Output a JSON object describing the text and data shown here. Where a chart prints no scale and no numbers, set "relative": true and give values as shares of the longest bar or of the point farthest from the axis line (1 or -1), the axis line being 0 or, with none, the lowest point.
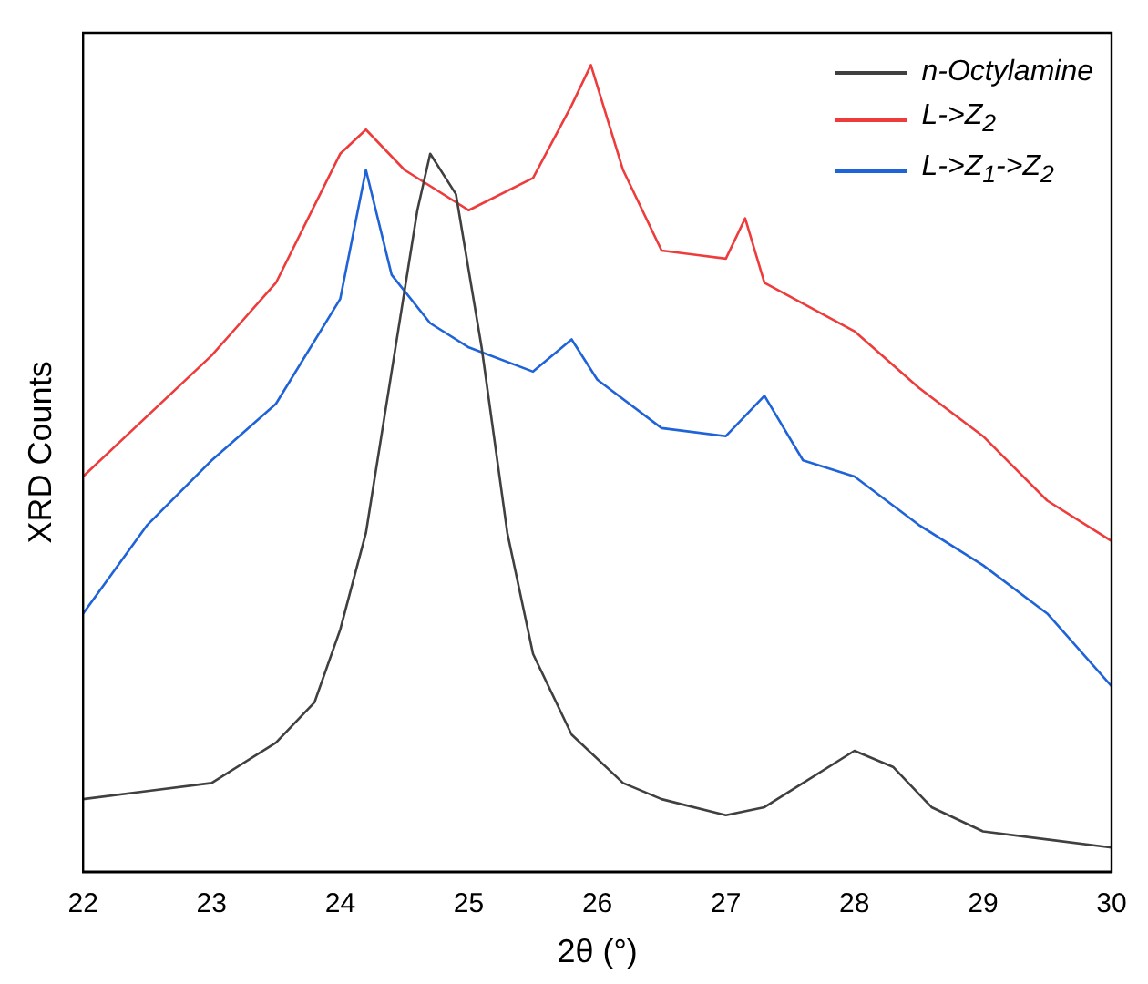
{
  "chart_data": {
    "type": "line",
    "xlabel": "2θ (°)",
    "ylabel": "XRD Counts",
    "relative": true,
    "xlim": [
      22,
      30
    ],
    "xticks": [
      22,
      23,
      24,
      25,
      26,
      27,
      28,
      29,
      30
    ],
    "grid": false,
    "legend": "top right",
    "marker": "none",
    "line_style": "solid",
    "series": [
      {
        "name": "n-Octylamine",
        "color": "#404040",
        "x": [
          22,
          22.5,
          23,
          23.5,
          23.8,
          24,
          24.2,
          24.4,
          24.6,
          24.7,
          24.9,
          25.1,
          25.3,
          25.5,
          25.8,
          26.2,
          26.5,
          27,
          27.3,
          27.6,
          28,
          28.3,
          28.6,
          29,
          29.5,
          30
        ],
        "values": [
          0.09,
          0.1,
          0.11,
          0.16,
          0.21,
          0.3,
          0.42,
          0.62,
          0.82,
          0.89,
          0.84,
          0.65,
          0.42,
          0.27,
          0.17,
          0.11,
          0.09,
          0.07,
          0.08,
          0.11,
          0.15,
          0.13,
          0.08,
          0.05,
          0.04,
          0.03
        ]
      },
      {
        "name": "L->Z$_{2}$",
        "color": "#ee3b3b",
        "x": [
          22,
          23,
          23.5,
          24,
          24.2,
          24.5,
          25,
          25.5,
          25.8,
          25.95,
          26.2,
          26.5,
          27,
          27.15,
          27.3,
          28,
          28.5,
          29,
          29.5,
          30
        ],
        "values": [
          0.49,
          0.64,
          0.73,
          0.89,
          0.92,
          0.87,
          0.82,
          0.86,
          0.95,
          1,
          0.87,
          0.77,
          0.76,
          0.81,
          0.73,
          0.67,
          0.6,
          0.54,
          0.46,
          0.41
        ]
      },
      {
        "name": "L->Z$_{1}$->Z$_{2}$",
        "color": "#1f63d8",
        "x": [
          22,
          22.5,
          23,
          23.5,
          24,
          24.2,
          24.4,
          24.7,
          25,
          25.5,
          25.8,
          26,
          26.5,
          27,
          27.3,
          27.6,
          28,
          28.5,
          29,
          29.5,
          30
        ],
        "values": [
          0.32,
          0.43,
          0.51,
          0.58,
          0.71,
          0.87,
          0.74,
          0.68,
          0.65,
          0.62,
          0.66,
          0.61,
          0.55,
          0.54,
          0.59,
          0.51,
          0.49,
          0.43,
          0.38,
          0.32,
          0.23
        ]
      }
    ]
  }
}
